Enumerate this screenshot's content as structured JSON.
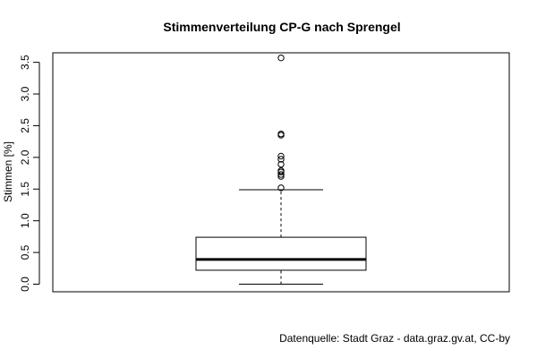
{
  "chart_data": {
    "type": "box",
    "title": "Stimmenverteilung CP-G nach Sprengel",
    "xlabel": "",
    "ylabel": "Stimmen [%]",
    "ylim": [
      -0.12,
      3.65
    ],
    "yticks": [
      "0.0",
      "0.5",
      "1.0",
      "1.5",
      "2.0",
      "2.5",
      "3.0",
      "3.5"
    ],
    "box": {
      "whisker_low": 0.0,
      "q1": 0.22,
      "median": 0.39,
      "q3": 0.74,
      "whisker_high": 1.49
    },
    "outliers": [
      1.52,
      1.7,
      1.73,
      1.77,
      1.79,
      1.89,
      1.97,
      2.02,
      2.35,
      2.37,
      3.57
    ],
    "grid": false
  },
  "footer": {
    "source": "Datenquelle: Stadt Graz - data.graz.gv.at, CC-by"
  }
}
